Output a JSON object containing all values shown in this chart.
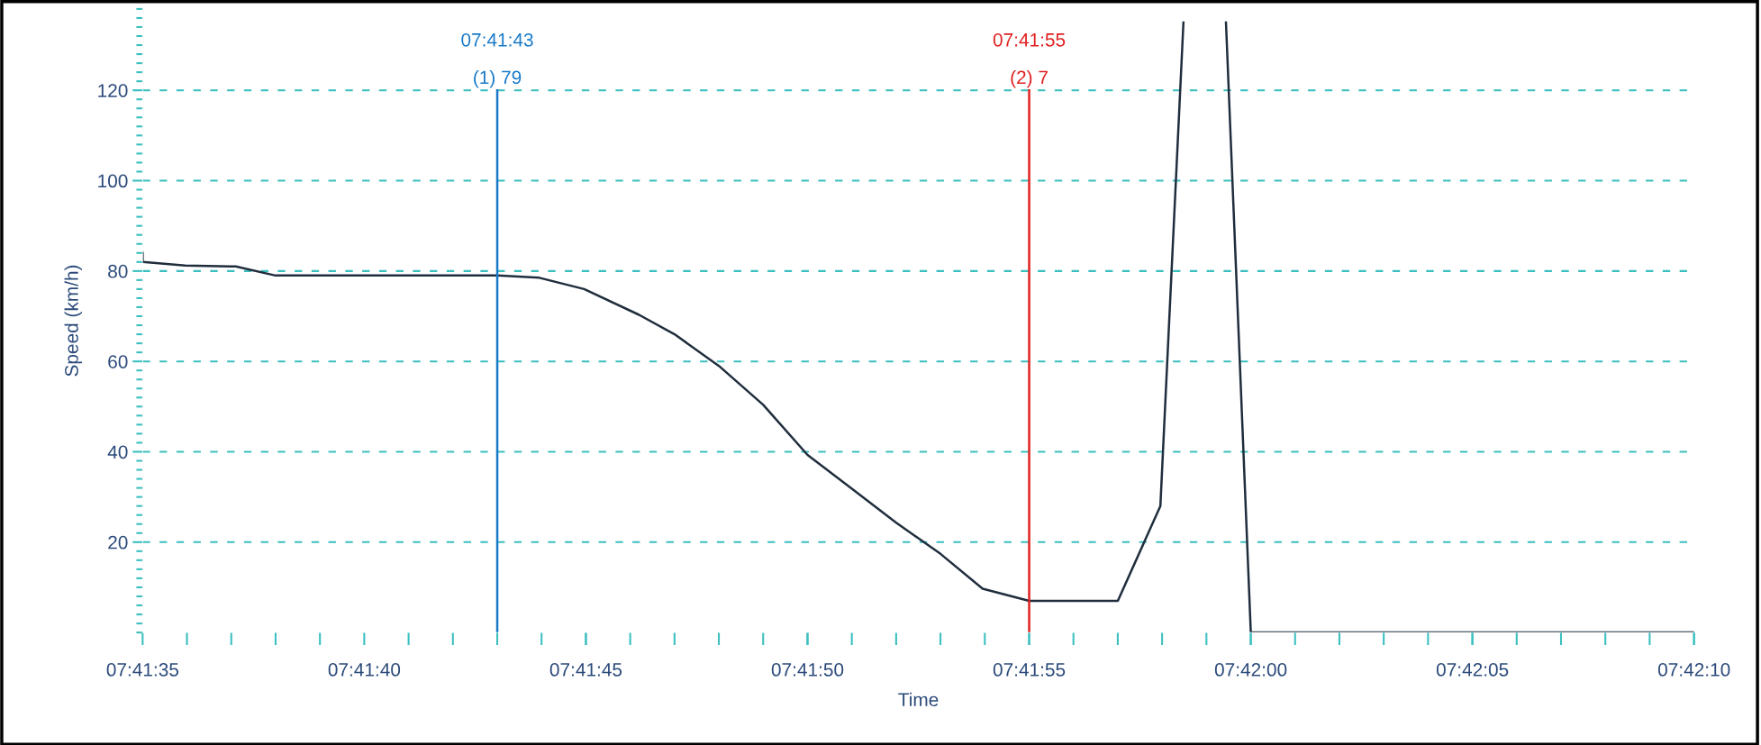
{
  "chart_data": {
    "type": "line",
    "xlabel": "Time",
    "ylabel": "Speed (km/h)",
    "x": [
      7.6930556,
      7.693056,
      7.6933222,
      7.6936389,
      7.6938889,
      7.6952778,
      7.6955417,
      7.6958222,
      7.6961667,
      7.6963889,
      7.6966667,
      7.6969444,
      7.6972222,
      7.6975,
      7.6977778,
      7.6980556,
      7.6983194,
      7.6986111,
      7.6991667,
      7.6994333,
      7.6995778,
      7.6997,
      7.6998444,
      7.7,
      7.7027778
    ],
    "series": [
      {
        "color": "#1f2d3d",
        "values": [
          84,
          82,
          81.2,
          81,
          79,
          79,
          78.5,
          76,
          70.3,
          66,
          59,
          50.4,
          39.3,
          31.8,
          24.3,
          17.4,
          9.7,
          7,
          7,
          28,
          135,
          null,
          135,
          0,
          0
        ]
      }
    ],
    "xlim": [
      7.6930556,
      7.7027778
    ],
    "ylim": [
      0,
      138
    ],
    "xticks": [
      {
        "value": 7.6930556,
        "label": "07:41:35"
      },
      {
        "value": 7.6944444,
        "label": "07:41:40"
      },
      {
        "value": 7.6958333,
        "label": "07:41:45"
      },
      {
        "value": 7.6972222,
        "label": "07:41:50"
      },
      {
        "value": 7.6986111,
        "label": "07:41:55"
      },
      {
        "value": 7.7,
        "label": "07:42:00"
      },
      {
        "value": 7.7013889,
        "label": "07:42:05"
      },
      {
        "value": 7.7027778,
        "label": "07:42:10"
      }
    ],
    "yticks": [
      20,
      40,
      60,
      80,
      100,
      120
    ],
    "grid": "y",
    "legend": false,
    "marker": "none",
    "line_style": "solid",
    "ref_lines": [
      {
        "axis": "x",
        "value": 7.6952778,
        "color": "#1a7ac8",
        "line_style": "solid"
      },
      {
        "axis": "x",
        "value": 7.6986111,
        "color": "#e02020",
        "line_style": "solid"
      }
    ],
    "annotations": [
      "07:41:43",
      "(1) 79",
      "07:41:55",
      "(2) 7"
    ]
  }
}
